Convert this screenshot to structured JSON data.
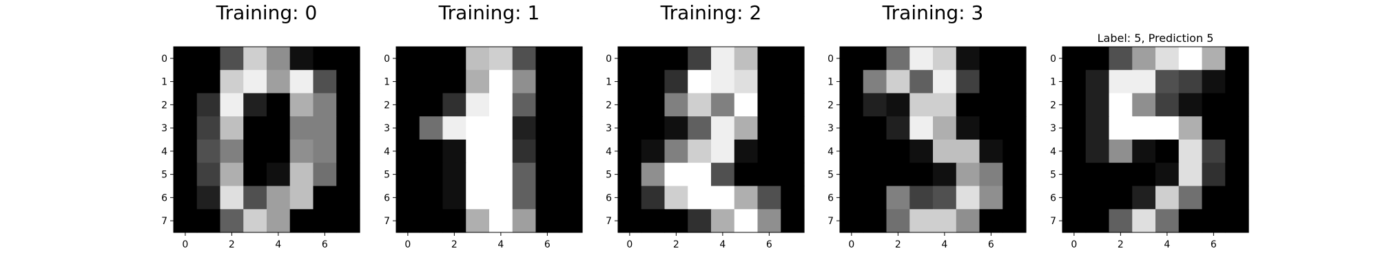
{
  "figure": {
    "background": "#ffffff",
    "colormap": "gray",
    "value_range": [
      0,
      16
    ]
  },
  "chart_data": [
    {
      "type": "heatmap",
      "title": "Training: 0",
      "x_ticks": [
        "0",
        "2",
        "4",
        "6"
      ],
      "y_ticks": [
        "0",
        "1",
        "2",
        "3",
        "4",
        "5",
        "6",
        "7"
      ],
      "values": [
        [
          0,
          0,
          5,
          13,
          9,
          1,
          0,
          0
        ],
        [
          0,
          0,
          13,
          15,
          10,
          15,
          5,
          0
        ],
        [
          0,
          3,
          15,
          2,
          0,
          11,
          8,
          0
        ],
        [
          0,
          4,
          12,
          0,
          0,
          8,
          8,
          0
        ],
        [
          0,
          5,
          8,
          0,
          0,
          9,
          8,
          0
        ],
        [
          0,
          4,
          11,
          0,
          1,
          12,
          7,
          0
        ],
        [
          0,
          2,
          14,
          5,
          10,
          12,
          0,
          0
        ],
        [
          0,
          0,
          6,
          13,
          10,
          0,
          0,
          0
        ]
      ]
    },
    {
      "type": "heatmap",
      "title": "Training: 1",
      "x_ticks": [
        "0",
        "2",
        "4",
        "6"
      ],
      "y_ticks": [
        "0",
        "1",
        "2",
        "3",
        "4",
        "5",
        "6",
        "7"
      ],
      "values": [
        [
          0,
          0,
          0,
          12,
          13,
          5,
          0,
          0
        ],
        [
          0,
          0,
          0,
          11,
          16,
          9,
          0,
          0
        ],
        [
          0,
          0,
          3,
          15,
          16,
          6,
          0,
          0
        ],
        [
          0,
          7,
          15,
          16,
          16,
          2,
          0,
          0
        ],
        [
          0,
          0,
          1,
          16,
          16,
          3,
          0,
          0
        ],
        [
          0,
          0,
          1,
          16,
          16,
          6,
          0,
          0
        ],
        [
          0,
          0,
          1,
          16,
          16,
          6,
          0,
          0
        ],
        [
          0,
          0,
          0,
          11,
          16,
          10,
          0,
          0
        ]
      ]
    },
    {
      "type": "heatmap",
      "title": "Training: 2",
      "x_ticks": [
        "0",
        "2",
        "4",
        "6"
      ],
      "y_ticks": [
        "0",
        "1",
        "2",
        "3",
        "4",
        "5",
        "6",
        "7"
      ],
      "values": [
        [
          0,
          0,
          0,
          4,
          15,
          12,
          0,
          0
        ],
        [
          0,
          0,
          3,
          16,
          15,
          14,
          0,
          0
        ],
        [
          0,
          0,
          8,
          13,
          8,
          16,
          0,
          0
        ],
        [
          0,
          0,
          1,
          6,
          15,
          11,
          0,
          0
        ],
        [
          0,
          1,
          8,
          13,
          15,
          1,
          0,
          0
        ],
        [
          0,
          9,
          16,
          16,
          5,
          0,
          0,
          0
        ],
        [
          0,
          3,
          13,
          16,
          16,
          11,
          5,
          0
        ],
        [
          0,
          0,
          0,
          3,
          11,
          16,
          9,
          0
        ]
      ]
    },
    {
      "type": "heatmap",
      "title": "Training: 3",
      "x_ticks": [
        "0",
        "2",
        "4",
        "6"
      ],
      "y_ticks": [
        "0",
        "1",
        "2",
        "3",
        "4",
        "5",
        "6",
        "7"
      ],
      "values": [
        [
          0,
          0,
          7,
          15,
          13,
          1,
          0,
          0
        ],
        [
          0,
          8,
          13,
          6,
          15,
          4,
          0,
          0
        ],
        [
          0,
          2,
          1,
          13,
          13,
          0,
          0,
          0
        ],
        [
          0,
          0,
          2,
          15,
          11,
          1,
          0,
          0
        ],
        [
          0,
          0,
          0,
          1,
          12,
          12,
          1,
          0
        ],
        [
          0,
          0,
          0,
          0,
          1,
          10,
          8,
          0
        ],
        [
          0,
          0,
          8,
          4,
          5,
          14,
          9,
          0
        ],
        [
          0,
          0,
          7,
          13,
          13,
          9,
          0,
          0
        ]
      ]
    },
    {
      "type": "heatmap",
      "title": "Label: 5, Prediction 5",
      "x_ticks": [
        "0",
        "2",
        "4",
        "6"
      ],
      "y_ticks": [
        "0",
        "1",
        "2",
        "3",
        "4",
        "5",
        "6",
        "7"
      ],
      "values": [
        [
          0,
          0,
          5,
          10,
          14,
          16,
          11,
          0
        ],
        [
          0,
          2,
          15,
          15,
          5,
          4,
          1,
          0
        ],
        [
          0,
          2,
          16,
          9,
          4,
          1,
          0,
          0
        ],
        [
          0,
          2,
          16,
          16,
          16,
          11,
          0,
          0
        ],
        [
          0,
          2,
          9,
          1,
          0,
          14,
          4,
          0
        ],
        [
          0,
          0,
          0,
          0,
          1,
          14,
          3,
          0
        ],
        [
          0,
          0,
          0,
          2,
          13,
          7,
          0,
          0
        ],
        [
          0,
          0,
          6,
          14,
          7,
          0,
          0,
          0
        ]
      ]
    }
  ]
}
